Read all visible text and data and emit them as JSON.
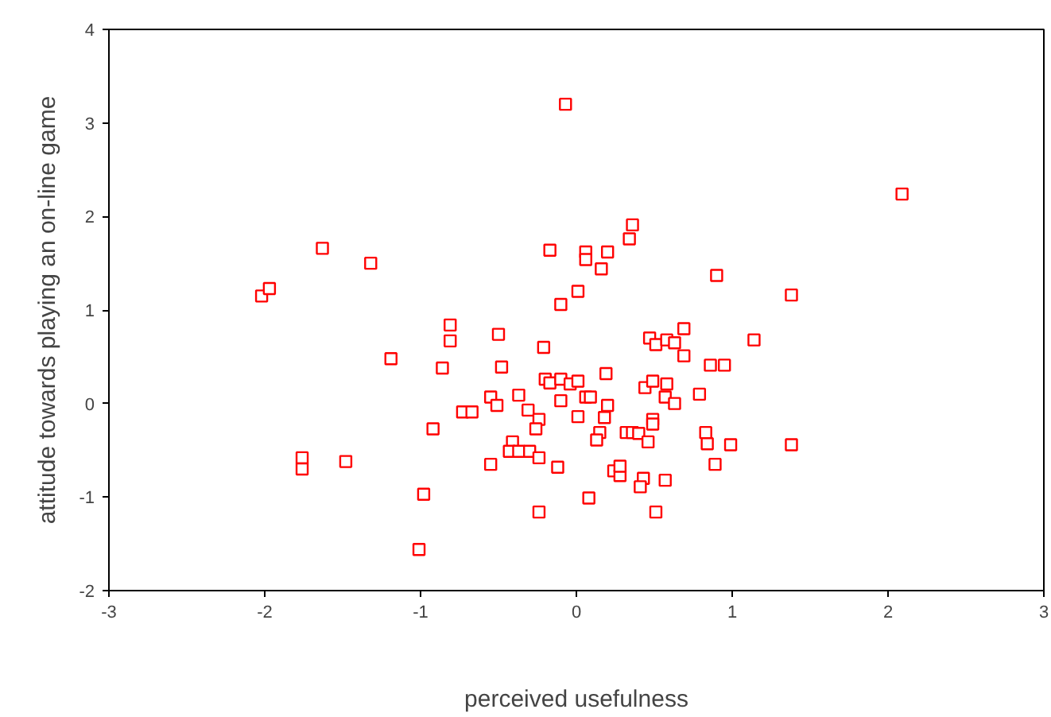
{
  "chart_data": {
    "type": "scatter",
    "xlabel": "perceived usefulness",
    "ylabel": "attitude towards playing an on-line game",
    "xlim": [
      -3,
      3
    ],
    "ylim": [
      -2,
      4
    ],
    "xticks": [
      -3,
      -2,
      -1,
      0,
      1,
      2,
      3
    ],
    "yticks": [
      -2,
      -1,
      0,
      1,
      2,
      3,
      4
    ],
    "grid": false,
    "marker": "square",
    "series": [
      {
        "color": "#ff0000",
        "x": [
          -2.02,
          -1.97,
          -1.63,
          -1.32,
          -1.76,
          -1.76,
          -1.48,
          -1.19,
          -0.92,
          -0.98,
          -1.01,
          -0.81,
          -0.81,
          -0.86,
          -0.73,
          -0.5,
          -0.48,
          -0.55,
          -0.51,
          -0.67,
          -0.55,
          -0.41,
          -0.43,
          -0.37,
          -0.37,
          -0.3,
          -0.31,
          -0.24,
          -0.26,
          -0.24,
          -0.24,
          -0.21,
          -0.2,
          -0.17,
          -0.17,
          -0.1,
          -0.07,
          -0.1,
          -0.1,
          -0.12,
          -0.04,
          0.01,
          0.01,
          0.01,
          0.06,
          0.06,
          0.06,
          0.09,
          0.08,
          0.16,
          0.2,
          0.19,
          0.2,
          0.18,
          0.15,
          0.13,
          0.24,
          0.28,
          0.34,
          0.36,
          0.28,
          0.32,
          0.36,
          0.4,
          0.43,
          0.41,
          0.44,
          0.47,
          0.51,
          0.49,
          0.49,
          0.49,
          0.51,
          0.46,
          0.58,
          0.63,
          0.69,
          0.69,
          0.58,
          0.57,
          0.63,
          0.57,
          0.79,
          0.83,
          0.84,
          0.9,
          0.86,
          0.95,
          0.89,
          0.99,
          1.14,
          1.38,
          1.38,
          2.09
        ],
        "values": [
          1.15,
          1.23,
          1.66,
          1.5,
          -0.58,
          -0.7,
          -0.62,
          0.48,
          -0.27,
          -0.97,
          -1.56,
          0.84,
          0.67,
          0.38,
          -0.09,
          0.74,
          0.39,
          0.07,
          -0.02,
          -0.09,
          -0.65,
          -0.41,
          -0.51,
          -0.51,
          0.09,
          -0.51,
          -0.07,
          -0.17,
          -0.27,
          -0.58,
          -1.16,
          0.6,
          0.26,
          0.22,
          1.64,
          1.06,
          3.2,
          0.26,
          0.03,
          -0.68,
          0.21,
          0.24,
          1.2,
          -0.14,
          1.62,
          1.54,
          0.07,
          0.07,
          -1.01,
          1.44,
          1.62,
          0.32,
          -0.02,
          -0.15,
          -0.31,
          -0.39,
          -0.72,
          -0.77,
          1.76,
          1.91,
          -0.67,
          -0.31,
          -0.31,
          -0.32,
          -0.8,
          -0.89,
          0.17,
          0.7,
          0.63,
          0.24,
          -0.17,
          -0.22,
          -1.16,
          -0.41,
          0.68,
          0.65,
          0.8,
          0.51,
          0.21,
          0.07,
          0.0,
          -0.82,
          0.1,
          -0.31,
          -0.43,
          1.37,
          0.41,
          0.41,
          -0.65,
          -0.44,
          0.68,
          1.16,
          -0.44,
          2.24
        ]
      }
    ]
  }
}
